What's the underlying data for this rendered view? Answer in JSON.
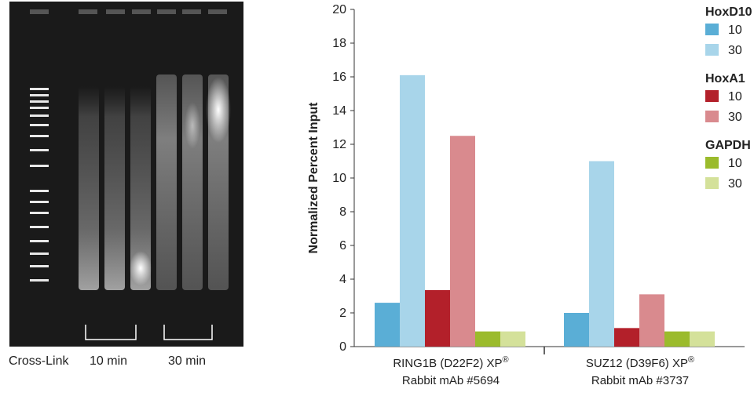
{
  "gel": {
    "cross_link_label": "Cross-Link",
    "lane_labels": [
      "10 min",
      "30 min"
    ]
  },
  "colors": {
    "hoxd10_10": "#5aaed6",
    "hoxd10_30": "#a8d5ea",
    "hoxa1_10": "#b3202a",
    "hoxa1_30": "#d98a8e",
    "gapdh_10": "#9bbb2c",
    "gapdh_30": "#d4e19a"
  },
  "chart_data": {
    "type": "bar",
    "ylabel": "Normalized Percent Input",
    "ylim": [
      0,
      20
    ],
    "yticks": [
      0,
      2,
      4,
      6,
      8,
      10,
      12,
      14,
      16,
      18,
      20
    ],
    "categories": [
      {
        "line1": "RING1B (D22F2) XP",
        "line2": "Rabbit mAb #5694"
      },
      {
        "line1": "SUZ12 (D39F6) XP",
        "line2": "Rabbit mAb #3737"
      }
    ],
    "registered_mark": "®",
    "legend_groups": [
      {
        "title": "HoxD10",
        "entries": [
          "10",
          "30"
        ]
      },
      {
        "title": "HoxA1",
        "entries": [
          "10",
          "30"
        ]
      },
      {
        "title": "GAPDH",
        "entries": [
          "10",
          "30"
        ]
      }
    ],
    "series": [
      {
        "name": "HoxD10 10",
        "color_key": "hoxd10_10",
        "values": [
          2.6,
          2.0
        ]
      },
      {
        "name": "HoxD10 30",
        "color_key": "hoxd10_30",
        "values": [
          16.1,
          11.0
        ]
      },
      {
        "name": "HoxA1 10",
        "color_key": "hoxa1_10",
        "values": [
          3.35,
          1.1
        ]
      },
      {
        "name": "HoxA1 30",
        "color_key": "hoxa1_30",
        "values": [
          12.5,
          3.1
        ]
      },
      {
        "name": "GAPDH 10",
        "color_key": "gapdh_10",
        "values": [
          0.9,
          0.9
        ]
      },
      {
        "name": "GAPDH 30",
        "color_key": "gapdh_30",
        "values": [
          0.9,
          0.9
        ]
      }
    ]
  }
}
